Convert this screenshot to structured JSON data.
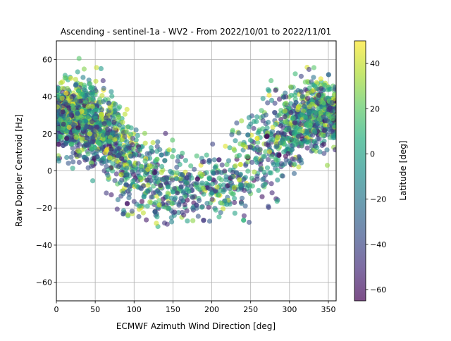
{
  "chart_data": {
    "type": "scatter",
    "title": "Ascending - sentinel-1a - WV2 - From 2022/10/01 to 2022/11/01",
    "xlabel": "ECMWF Azimuth Wind Direction [deg]",
    "ylabel": "Raw Doppler Centroid [Hz]",
    "xlim": [
      0,
      360
    ],
    "ylim": [
      -70,
      70
    ],
    "xticks": [
      "0",
      "50",
      "100",
      "150",
      "200",
      "250",
      "300",
      "350"
    ],
    "yticks": [
      "−60",
      "−40",
      "−20",
      "0",
      "20",
      "40",
      "60"
    ],
    "grid": true,
    "marker_alpha": 0.6,
    "colormap": "viridis",
    "colorbar": {
      "label": "Latitude [deg]",
      "range": [
        -65,
        50
      ],
      "ticks": [
        "−60",
        "−40",
        "−20",
        "0",
        "20",
        "40"
      ]
    },
    "trend_points": [
      {
        "x": 0,
        "y": 30
      },
      {
        "x": 30,
        "y": 29
      },
      {
        "x": 60,
        "y": 22
      },
      {
        "x": 90,
        "y": 8
      },
      {
        "x": 120,
        "y": -3
      },
      {
        "x": 150,
        "y": -8
      },
      {
        "x": 180,
        "y": -9
      },
      {
        "x": 210,
        "y": -6
      },
      {
        "x": 240,
        "y": 2
      },
      {
        "x": 270,
        "y": 13
      },
      {
        "x": 300,
        "y": 24
      },
      {
        "x": 330,
        "y": 30
      },
      {
        "x": 360,
        "y": 32
      }
    ],
    "point_count": 2600
  }
}
